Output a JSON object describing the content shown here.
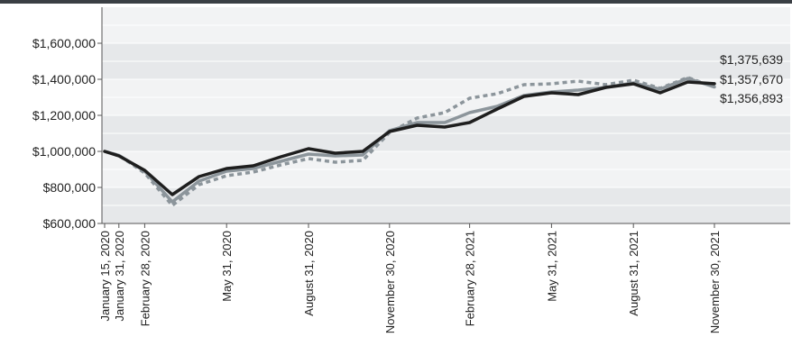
{
  "chart_data": {
    "type": "line",
    "x_tick_labels": [
      "January 15, 2020",
      "January 31, 2020",
      "February 28, 2020",
      "May 31, 2020",
      "August 31, 2020",
      "November 30, 2020",
      "February 28, 2021",
      "May 31, 2021",
      "August 31, 2021",
      "November 30, 2021"
    ],
    "x": [
      "2020-01-15",
      "2020-01-31",
      "2020-02-29",
      "2020-03-31",
      "2020-04-30",
      "2020-05-31",
      "2020-06-30",
      "2020-07-31",
      "2020-08-31",
      "2020-09-30",
      "2020-10-31",
      "2020-11-30",
      "2020-12-31",
      "2021-01-31",
      "2021-02-28",
      "2021-03-31",
      "2021-04-30",
      "2021-05-31",
      "2021-06-30",
      "2021-07-31",
      "2021-08-31",
      "2021-09-30",
      "2021-10-31",
      "2021-11-30"
    ],
    "y_ticks": [
      600000,
      800000,
      1000000,
      1200000,
      1400000,
      1600000
    ],
    "y_tick_labels": [
      "$600,000",
      "$800,000",
      "$1,000,000",
      "$1,200,000",
      "$1,400,000",
      "$1,600,000"
    ],
    "ylim": [
      600000,
      1800000
    ],
    "grid": "horizontal bands",
    "series": [
      {
        "color": "#1e1e1e",
        "style": "solid",
        "end_label": "$1,375,639",
        "values": [
          1000000,
          975000,
          895000,
          760000,
          860000,
          905000,
          920000,
          970000,
          1015000,
          990000,
          1000000,
          1110000,
          1145000,
          1135000,
          1160000,
          1235000,
          1305000,
          1325000,
          1315000,
          1355000,
          1375000,
          1325000,
          1385000,
          1375639
        ]
      },
      {
        "color": "#8c959b",
        "style": "solid",
        "end_label": "$1,357,670",
        "values": [
          1000000,
          978000,
          890000,
          720000,
          835000,
          890000,
          905000,
          945000,
          985000,
          975000,
          980000,
          1115000,
          1160000,
          1160000,
          1215000,
          1250000,
          1310000,
          1330000,
          1340000,
          1355000,
          1380000,
          1345000,
          1405000,
          1357670
        ]
      },
      {
        "color": "#8c959b",
        "style": "dotted",
        "end_label": "$1,356,893",
        "values": [
          1000000,
          978000,
          880000,
          700000,
          815000,
          865000,
          885000,
          925000,
          960000,
          940000,
          950000,
          1105000,
          1185000,
          1215000,
          1295000,
          1320000,
          1370000,
          1375000,
          1390000,
          1370000,
          1395000,
          1350000,
          1410000,
          1356893
        ]
      }
    ]
  }
}
